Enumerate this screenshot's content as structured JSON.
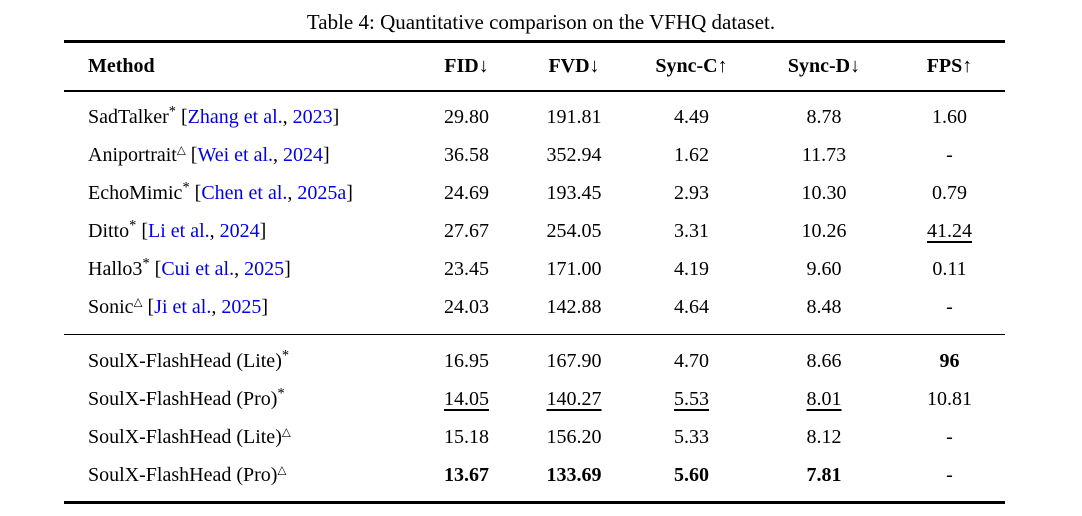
{
  "page": {
    "caption": "Table 4: Quantitative comparison on the VFHQ dataset."
  },
  "colors": {
    "citation_blue": "#0000EE",
    "text": "#000000",
    "rule": "#000000",
    "background": "#FFFFFF"
  },
  "table": {
    "columns": [
      {
        "label": "Method",
        "arrow": ""
      },
      {
        "label": "FID",
        "arrow": "↓"
      },
      {
        "label": "FVD",
        "arrow": "↓"
      },
      {
        "label": "Sync-C",
        "arrow": "↑"
      },
      {
        "label": "Sync-D",
        "arrow": "↓"
      },
      {
        "label": "FPS",
        "arrow": "↑"
      }
    ],
    "sections": [
      {
        "rows": [
          {
            "method": "SadTalker",
            "superscript": "*",
            "citation": {
              "authors": "Zhang et al.",
              "year": "2023"
            },
            "values": [
              {
                "text": "29.80"
              },
              {
                "text": "191.81"
              },
              {
                "text": "4.49"
              },
              {
                "text": "8.78"
              },
              {
                "text": "1.60"
              }
            ]
          },
          {
            "method": "Aniportrait",
            "superscript": "△",
            "citation": {
              "authors": "Wei et al.",
              "year": "2024"
            },
            "values": [
              {
                "text": "36.58"
              },
              {
                "text": "352.94"
              },
              {
                "text": "1.62"
              },
              {
                "text": "11.73"
              },
              {
                "text": "-"
              }
            ]
          },
          {
            "method": "EchoMimic",
            "superscript": "*",
            "citation": {
              "authors": "Chen et al.",
              "year": "2025a"
            },
            "values": [
              {
                "text": "24.69"
              },
              {
                "text": "193.45"
              },
              {
                "text": "2.93"
              },
              {
                "text": "10.30"
              },
              {
                "text": "0.79"
              }
            ]
          },
          {
            "method": "Ditto",
            "superscript": "*",
            "citation": {
              "authors": "Li et al.",
              "year": "2024"
            },
            "values": [
              {
                "text": "27.67"
              },
              {
                "text": "254.05"
              },
              {
                "text": "3.31"
              },
              {
                "text": "10.26"
              },
              {
                "text": "41.24",
                "style": "underline"
              }
            ]
          },
          {
            "method": "Hallo3",
            "superscript": "*",
            "citation": {
              "authors": "Cui et al.",
              "year": "2025"
            },
            "values": [
              {
                "text": "23.45"
              },
              {
                "text": "171.00"
              },
              {
                "text": "4.19"
              },
              {
                "text": "9.60"
              },
              {
                "text": "0.11"
              }
            ]
          },
          {
            "method": "Sonic",
            "superscript": "△",
            "citation": {
              "authors": "Ji et al.",
              "year": "2025"
            },
            "values": [
              {
                "text": "24.03"
              },
              {
                "text": "142.88"
              },
              {
                "text": "4.64"
              },
              {
                "text": "8.48"
              },
              {
                "text": "-"
              }
            ]
          }
        ]
      },
      {
        "rows": [
          {
            "method": "SoulX-FlashHead (Lite)",
            "superscript": "*",
            "citation": null,
            "values": [
              {
                "text": "16.95"
              },
              {
                "text": "167.90"
              },
              {
                "text": "4.70"
              },
              {
                "text": "8.66"
              },
              {
                "text": "96",
                "style": "bold"
              }
            ]
          },
          {
            "method": "SoulX-FlashHead (Pro)",
            "superscript": "*",
            "citation": null,
            "values": [
              {
                "text": "14.05",
                "style": "underline"
              },
              {
                "text": "140.27",
                "style": "underline"
              },
              {
                "text": "5.53",
                "style": "underline"
              },
              {
                "text": "8.01",
                "style": "underline"
              },
              {
                "text": "10.81"
              }
            ]
          },
          {
            "method": "SoulX-FlashHead (Lite)",
            "superscript": "△",
            "citation": null,
            "values": [
              {
                "text": "15.18"
              },
              {
                "text": "156.20"
              },
              {
                "text": "5.33"
              },
              {
                "text": "8.12"
              },
              {
                "text": "-"
              }
            ]
          },
          {
            "method": "SoulX-FlashHead (Pro)",
            "superscript": "△",
            "citation": null,
            "values": [
              {
                "text": "13.67",
                "style": "bold"
              },
              {
                "text": "133.69",
                "style": "bold"
              },
              {
                "text": "5.60",
                "style": "bold"
              },
              {
                "text": "7.81",
                "style": "bold"
              },
              {
                "text": "-"
              }
            ]
          }
        ]
      }
    ]
  }
}
